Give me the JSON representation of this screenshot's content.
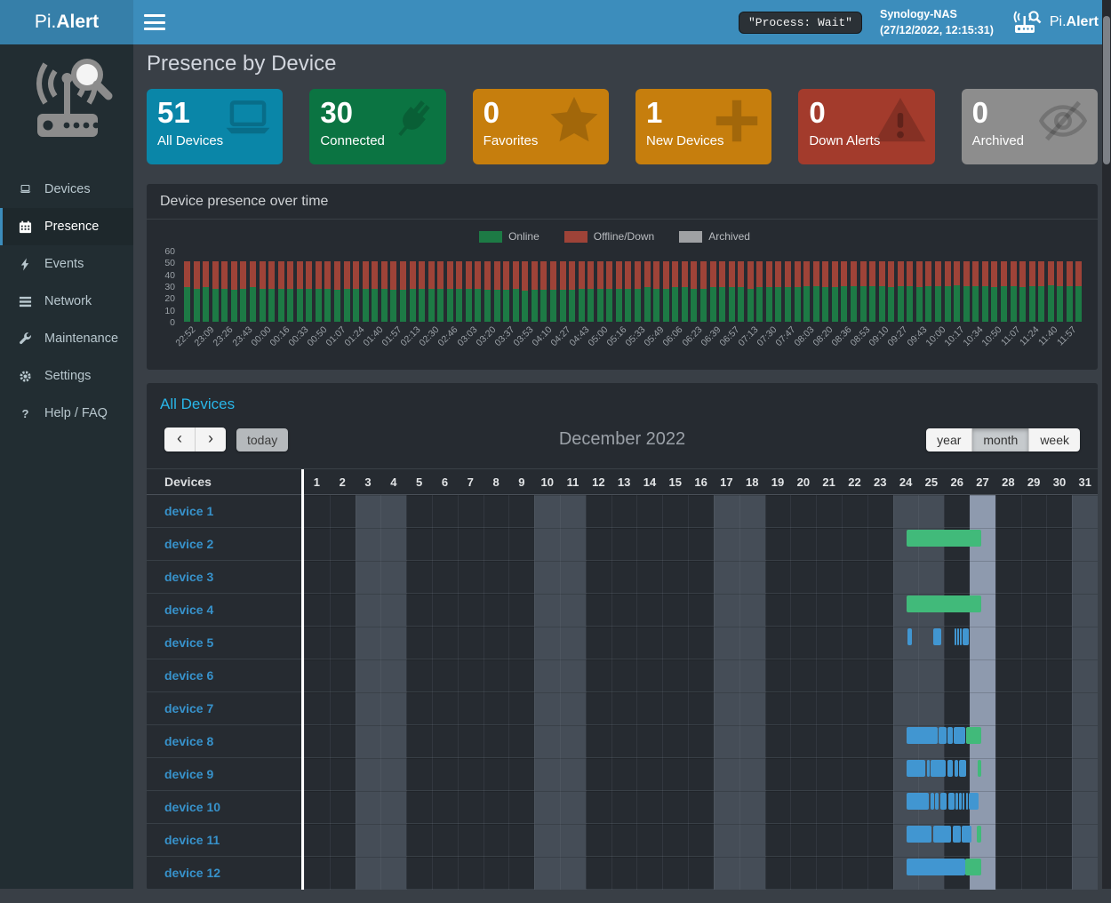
{
  "navbar": {
    "brand_pi": "Pi.",
    "brand_alert": "Alert",
    "process_status": "\"Process: Wait\"",
    "host": "Synology-NAS",
    "timestamp": "(27/12/2022, 12:15:31)",
    "app_pi": "Pi.",
    "app_alert": "Alert"
  },
  "sidebar": {
    "items": [
      {
        "label": "Devices",
        "icon": "laptop-icon",
        "active": false
      },
      {
        "label": "Presence",
        "icon": "calendar-icon",
        "active": true
      },
      {
        "label": "Events",
        "icon": "bolt-icon",
        "active": false
      },
      {
        "label": "Network",
        "icon": "network-icon",
        "active": false
      },
      {
        "label": "Maintenance",
        "icon": "wrench-icon",
        "active": false
      },
      {
        "label": "Settings",
        "icon": "gear-icon",
        "active": false
      },
      {
        "label": "Help / FAQ",
        "icon": "question-icon",
        "active": false
      }
    ]
  },
  "page": {
    "title": "Presence by Device"
  },
  "infoboxes": [
    {
      "value": "51",
      "label": "All Devices",
      "color": "#0a86a8",
      "icon": "laptop-icon"
    },
    {
      "value": "30",
      "label": "Connected",
      "color": "#0b7442",
      "icon": "plug-icon"
    },
    {
      "value": "0",
      "label": "Favorites",
      "color": "#c67e0d",
      "icon": "star-icon"
    },
    {
      "value": "1",
      "label": "New Devices",
      "color": "#c67e0d",
      "icon": "plus-icon"
    },
    {
      "value": "0",
      "label": "Down Alerts",
      "color": "#a33b2c",
      "icon": "warning-icon"
    },
    {
      "value": "0",
      "label": "Archived",
      "color": "#8d8d8d",
      "icon": "eye-slash-icon"
    }
  ],
  "presence_panel": {
    "title": "Device presence over time"
  },
  "chart_data": {
    "type": "bar",
    "stacked": true,
    "title": "Device presence over time",
    "ylim": [
      0,
      60
    ],
    "yticks": [
      0,
      10,
      20,
      30,
      40,
      50,
      60
    ],
    "grid": false,
    "legend_position": "top-center",
    "bars_per_label": 2,
    "x_tick_labels": [
      "22:52",
      "23:09",
      "23:26",
      "23:43",
      "00:00",
      "00:16",
      "00:33",
      "00:50",
      "01:07",
      "01:24",
      "01:40",
      "01:57",
      "02:13",
      "02:30",
      "02:46",
      "03:03",
      "03:20",
      "03:37",
      "03:53",
      "04:10",
      "04:27",
      "04:43",
      "05:00",
      "05:16",
      "05:33",
      "05:49",
      "06:06",
      "06:23",
      "06:39",
      "06:57",
      "07:13",
      "07:30",
      "07:47",
      "08:03",
      "08:20",
      "08:36",
      "08:53",
      "09:10",
      "09:27",
      "09:43",
      "10:00",
      "10:17",
      "10:34",
      "10:50",
      "11:07",
      "11:24",
      "11:40",
      "11:57"
    ],
    "series": [
      {
        "name": "Online",
        "color": "#1d7a45",
        "values": [
          29,
          28,
          29,
          28,
          28,
          27,
          28,
          29,
          28,
          28,
          28,
          28,
          28,
          28,
          28,
          28,
          27,
          28,
          28,
          28,
          28,
          28,
          27,
          27,
          28,
          28,
          28,
          28,
          28,
          28,
          28,
          28,
          27,
          27,
          27,
          28,
          26,
          27,
          27,
          27,
          27,
          27,
          28,
          28,
          28,
          28,
          28,
          28,
          28,
          29,
          28,
          28,
          29,
          29,
          28,
          28,
          29,
          29,
          29,
          29,
          28,
          29,
          29,
          29,
          29,
          29,
          30,
          30,
          29,
          29,
          30,
          30,
          30,
          30,
          30,
          29,
          30,
          30,
          29,
          30,
          30,
          30,
          31,
          30,
          30,
          30,
          29,
          30,
          30,
          29,
          30,
          30,
          31,
          30,
          30,
          30
        ]
      },
      {
        "name": "Offline/Down",
        "color": "#9e4338",
        "values": [
          22,
          23,
          22,
          23,
          23,
          24,
          23,
          22,
          23,
          23,
          23,
          23,
          23,
          23,
          23,
          23,
          24,
          23,
          23,
          23,
          23,
          23,
          24,
          24,
          23,
          23,
          23,
          23,
          23,
          23,
          23,
          23,
          24,
          24,
          24,
          23,
          25,
          24,
          24,
          24,
          24,
          24,
          23,
          23,
          23,
          23,
          23,
          23,
          23,
          22,
          23,
          23,
          22,
          22,
          23,
          23,
          22,
          22,
          22,
          22,
          23,
          22,
          22,
          22,
          22,
          22,
          21,
          21,
          22,
          22,
          21,
          21,
          21,
          21,
          21,
          22,
          21,
          21,
          22,
          21,
          21,
          21,
          20,
          21,
          21,
          21,
          22,
          21,
          21,
          22,
          21,
          21,
          20,
          21,
          21,
          21
        ]
      },
      {
        "name": "Archived",
        "color": "#9fa1a4",
        "values": 0
      }
    ]
  },
  "calendar": {
    "title": "All Devices",
    "toolbar": {
      "prev_label": "‹",
      "next_label": "›",
      "today_label": "today",
      "month_title": "December 2022",
      "views": [
        "year",
        "month",
        "week"
      ],
      "active_view": "month"
    },
    "table": {
      "device_header": "Devices",
      "days": [
        1,
        2,
        3,
        4,
        5,
        6,
        7,
        8,
        9,
        10,
        11,
        12,
        13,
        14,
        15,
        16,
        17,
        18,
        19,
        20,
        21,
        22,
        23,
        24,
        25,
        26,
        27,
        28,
        29,
        30,
        31
      ],
      "weekend_days": [
        3,
        4,
        10,
        11,
        17,
        18,
        24,
        25,
        31
      ],
      "today_day": 27
    },
    "bar_colors": {
      "current": "#41ba7a",
      "past": "#4196d1"
    },
    "devices": [
      {
        "name": "device 1",
        "bars": []
      },
      {
        "name": "device 2",
        "bars": [
          {
            "start_day": 24.52,
            "end_day": 27.45,
            "type": "current"
          }
        ]
      },
      {
        "name": "device 3",
        "bars": []
      },
      {
        "name": "device 4",
        "bars": [
          {
            "start_day": 24.52,
            "end_day": 27.45,
            "type": "current"
          }
        ]
      },
      {
        "name": "device 5",
        "bars": [
          {
            "start_day": 24.58,
            "end_day": 24.74,
            "type": "past"
          },
          {
            "start_day": 25.56,
            "end_day": 25.9,
            "type": "past"
          },
          {
            "start_day": 26.42,
            "end_day": 26.49,
            "type": "past"
          },
          {
            "start_day": 26.53,
            "end_day": 26.59,
            "type": "past"
          },
          {
            "start_day": 26.63,
            "end_day": 26.69,
            "type": "past"
          },
          {
            "start_day": 26.73,
            "end_day": 26.97,
            "type": "past"
          }
        ]
      },
      {
        "name": "device 6",
        "bars": []
      },
      {
        "name": "device 7",
        "bars": []
      },
      {
        "name": "device 8",
        "bars": [
          {
            "start_day": 24.52,
            "end_day": 25.74,
            "type": "past"
          },
          {
            "start_day": 25.78,
            "end_day": 26.09,
            "type": "past"
          },
          {
            "start_day": 26.13,
            "end_day": 26.33,
            "type": "past"
          },
          {
            "start_day": 26.37,
            "end_day": 26.82,
            "type": "past"
          },
          {
            "start_day": 26.86,
            "end_day": 27.44,
            "type": "current"
          }
        ]
      },
      {
        "name": "device 9",
        "bars": [
          {
            "start_day": 24.52,
            "end_day": 25.28,
            "type": "past"
          },
          {
            "start_day": 25.32,
            "end_day": 25.44,
            "type": "past"
          },
          {
            "start_day": 25.48,
            "end_day": 26.08,
            "type": "past"
          },
          {
            "start_day": 26.12,
            "end_day": 26.36,
            "type": "past"
          },
          {
            "start_day": 26.4,
            "end_day": 26.56,
            "type": "past"
          },
          {
            "start_day": 26.6,
            "end_day": 26.88,
            "type": "past"
          },
          {
            "start_day": 27.3,
            "end_day": 27.44,
            "type": "current"
          }
        ]
      },
      {
        "name": "device 10",
        "bars": [
          {
            "start_day": 24.52,
            "end_day": 25.42,
            "type": "past"
          },
          {
            "start_day": 25.46,
            "end_day": 25.6,
            "type": "past"
          },
          {
            "start_day": 25.66,
            "end_day": 25.78,
            "type": "past"
          },
          {
            "start_day": 25.84,
            "end_day": 26.1,
            "type": "past"
          },
          {
            "start_day": 26.16,
            "end_day": 26.4,
            "type": "past"
          },
          {
            "start_day": 26.46,
            "end_day": 26.56,
            "type": "past"
          },
          {
            "start_day": 26.6,
            "end_day": 26.68,
            "type": "past"
          },
          {
            "start_day": 26.73,
            "end_day": 26.8,
            "type": "past"
          },
          {
            "start_day": 26.85,
            "end_day": 26.93,
            "type": "past"
          },
          {
            "start_day": 26.98,
            "end_day": 27.35,
            "type": "past"
          }
        ]
      },
      {
        "name": "device 11",
        "bars": [
          {
            "start_day": 24.52,
            "end_day": 25.5,
            "type": "past"
          },
          {
            "start_day": 25.56,
            "end_day": 26.28,
            "type": "past"
          },
          {
            "start_day": 26.34,
            "end_day": 26.64,
            "type": "past"
          },
          {
            "start_day": 26.7,
            "end_day": 27.08,
            "type": "past"
          },
          {
            "start_day": 27.26,
            "end_day": 27.44,
            "type": "current"
          }
        ]
      },
      {
        "name": "device 12",
        "bars": [
          {
            "start_day": 24.52,
            "end_day": 26.82,
            "type": "past"
          },
          {
            "start_day": 26.82,
            "end_day": 27.45,
            "type": "current"
          }
        ]
      }
    ]
  },
  "legend": [
    {
      "label": "Online",
      "color": "#1d7a45"
    },
    {
      "label": "Offline/Down",
      "color": "#9e4338"
    },
    {
      "label": "Archived",
      "color": "#9fa1a4"
    }
  ]
}
